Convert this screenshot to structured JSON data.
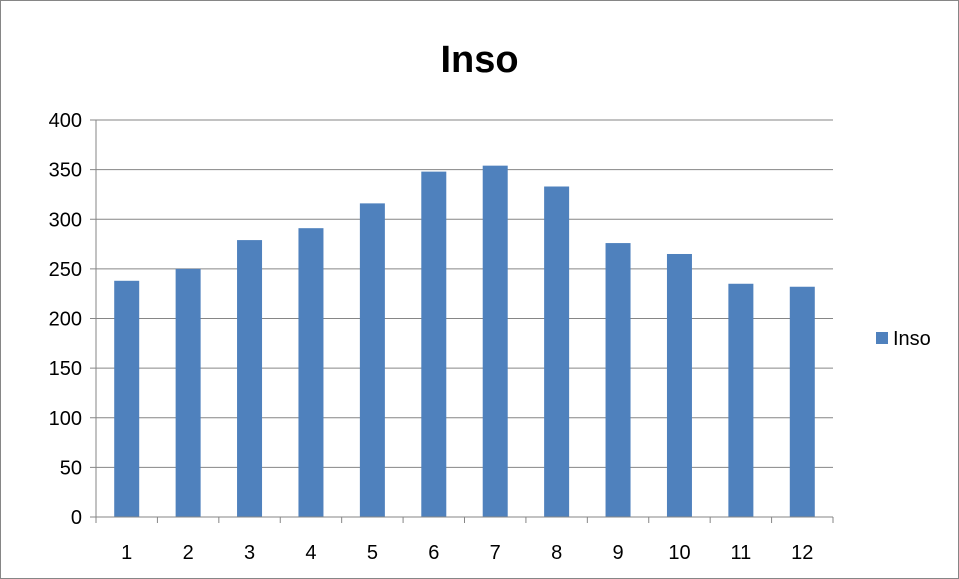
{
  "chart_data": {
    "type": "bar",
    "title": "Inso",
    "xlabel": "",
    "ylabel": "",
    "categories": [
      "1",
      "2",
      "3",
      "4",
      "5",
      "6",
      "7",
      "8",
      "9",
      "10",
      "11",
      "12"
    ],
    "series": [
      {
        "name": "Inso",
        "values": [
          238,
          250,
          279,
          291,
          316,
          348,
          354,
          333,
          276,
          265,
          235,
          232
        ],
        "color": "#4f81bd"
      }
    ],
    "ylim": [
      0,
      400
    ],
    "yticks": [
      0,
      50,
      100,
      150,
      200,
      250,
      300,
      350,
      400
    ],
    "grid": true,
    "legend": "right"
  }
}
